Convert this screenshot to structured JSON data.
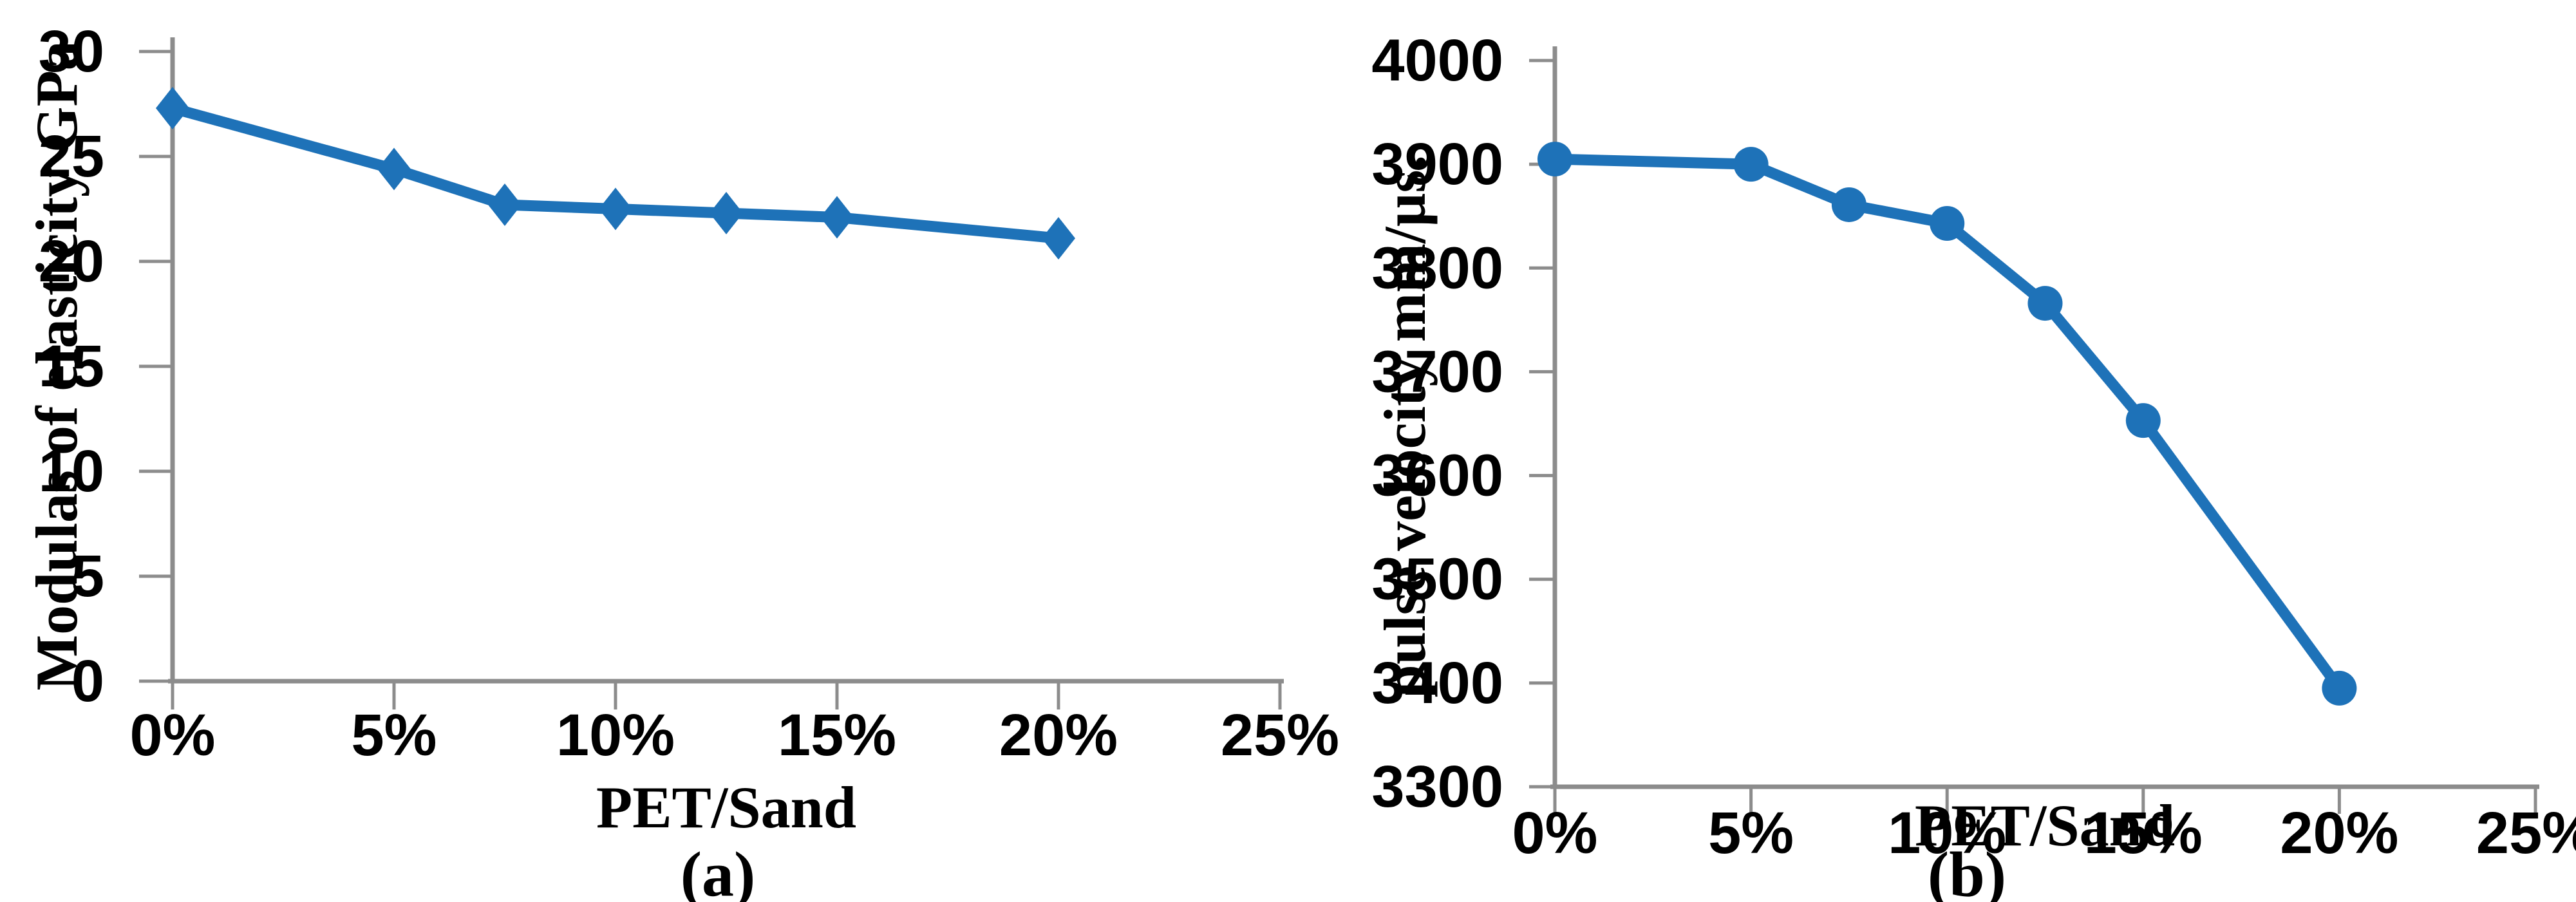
{
  "figure": {
    "background": "#FFFFFF",
    "axis_color": "#8C8C8C",
    "text_color": "#000000",
    "accent_line_color": "#1E72B8"
  },
  "chart_data": [
    {
      "type": "line",
      "panel": "a",
      "caption": "(a)",
      "title": "",
      "xlabel": "PET/Sand",
      "ylabel": "Modulas of elasticity GPa",
      "x": [
        0,
        5,
        7.5,
        10,
        12.5,
        15,
        20
      ],
      "values": [
        27.3,
        24.4,
        22.7,
        22.5,
        22.3,
        22.1,
        21.1
      ],
      "xlim": [
        0,
        25
      ],
      "ylim": [
        0,
        30
      ],
      "x_tick_values": [
        0,
        5,
        10,
        15,
        20,
        25
      ],
      "x_tick_labels": [
        "0%",
        "5%",
        "10%",
        "15%",
        "20%",
        "25%"
      ],
      "y_ticks": [
        0,
        5,
        10,
        15,
        20,
        25,
        30
      ],
      "marker": "diamond",
      "line_color": "#1E72B8",
      "grid": false,
      "legend_position": "none"
    },
    {
      "type": "line",
      "panel": "b",
      "caption": "(b)",
      "title": "",
      "xlabel": "PET/Sand",
      "ylabel": "pulse velocity mm/µs.",
      "x": [
        0,
        5,
        7.5,
        10,
        12.5,
        15,
        20
      ],
      "values": [
        3905,
        3900,
        3861,
        3843,
        3766,
        3653,
        3395
      ],
      "xlim": [
        0,
        25
      ],
      "ylim": [
        3300,
        4000
      ],
      "x_tick_values": [
        0,
        5,
        10,
        15,
        20,
        25
      ],
      "x_tick_labels": [
        "0%",
        "5%",
        "10%",
        "15%",
        "20%",
        "25%"
      ],
      "y_ticks": [
        3300,
        3400,
        3500,
        3600,
        3700,
        3800,
        3900,
        4000
      ],
      "marker": "circle",
      "line_color": "#1E72B8",
      "grid": false,
      "legend_position": "none"
    }
  ]
}
